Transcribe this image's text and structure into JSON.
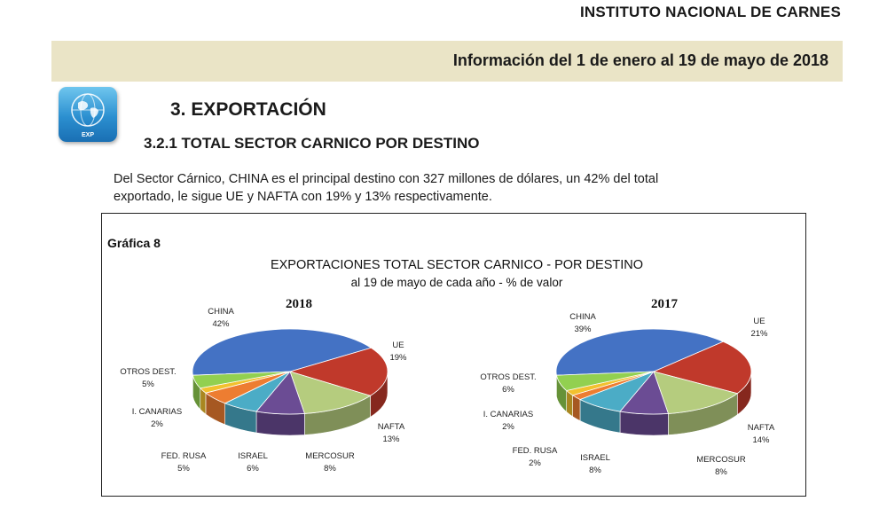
{
  "header": {
    "institute": "INSTITUTO NACIONAL DE CARNES",
    "period": "Información del 1 de enero al 19 de mayo de 2018"
  },
  "icon": {
    "name": "globe-icon",
    "label": "EXP"
  },
  "section": {
    "title": "3. EXPORTACIÓN"
  },
  "subsection": {
    "title": "3.2.1 TOTAL SECTOR CARNICO POR DESTINO"
  },
  "intro": {
    "line1": "Del Sector Cárnico, CHINA es el principal destino con 327 millones de dólares, un 42% del total",
    "line2": "exportado, le sigue UE y NAFTA con 19% y 13% respectivamente."
  },
  "figure": {
    "label": "Gráfica 8"
  },
  "chart_data": {
    "type": "pie",
    "title": "EXPORTACIONES TOTAL SECTOR CARNICO - POR DESTINO",
    "subtitle": "al 19 de mayo de cada año -  % de valor",
    "categories": [
      "CHINA",
      "UE",
      "NAFTA",
      "MERCOSUR",
      "ISRAEL",
      "FED. RUSA",
      "I. CANARIAS",
      "OTROS DEST."
    ],
    "colors": [
      "#4472c4",
      "#c0392b",
      "#b5cc7e",
      "#6b4c94",
      "#4bacc6",
      "#ed7d31",
      "#f2c12e",
      "#92d050"
    ],
    "series": [
      {
        "name": "2018",
        "values": [
          42,
          19,
          13,
          8,
          6,
          5,
          2,
          5
        ],
        "labels": [
          "42%",
          "19%",
          "13%",
          "8%",
          "6%",
          "5%",
          "2%",
          "5%"
        ]
      },
      {
        "name": "2017",
        "values": [
          39,
          21,
          14,
          8,
          8,
          2,
          2,
          6
        ],
        "labels": [
          "39%",
          "21%",
          "14%",
          "8%",
          "8%",
          "2%",
          "2%",
          "6%"
        ]
      }
    ]
  }
}
